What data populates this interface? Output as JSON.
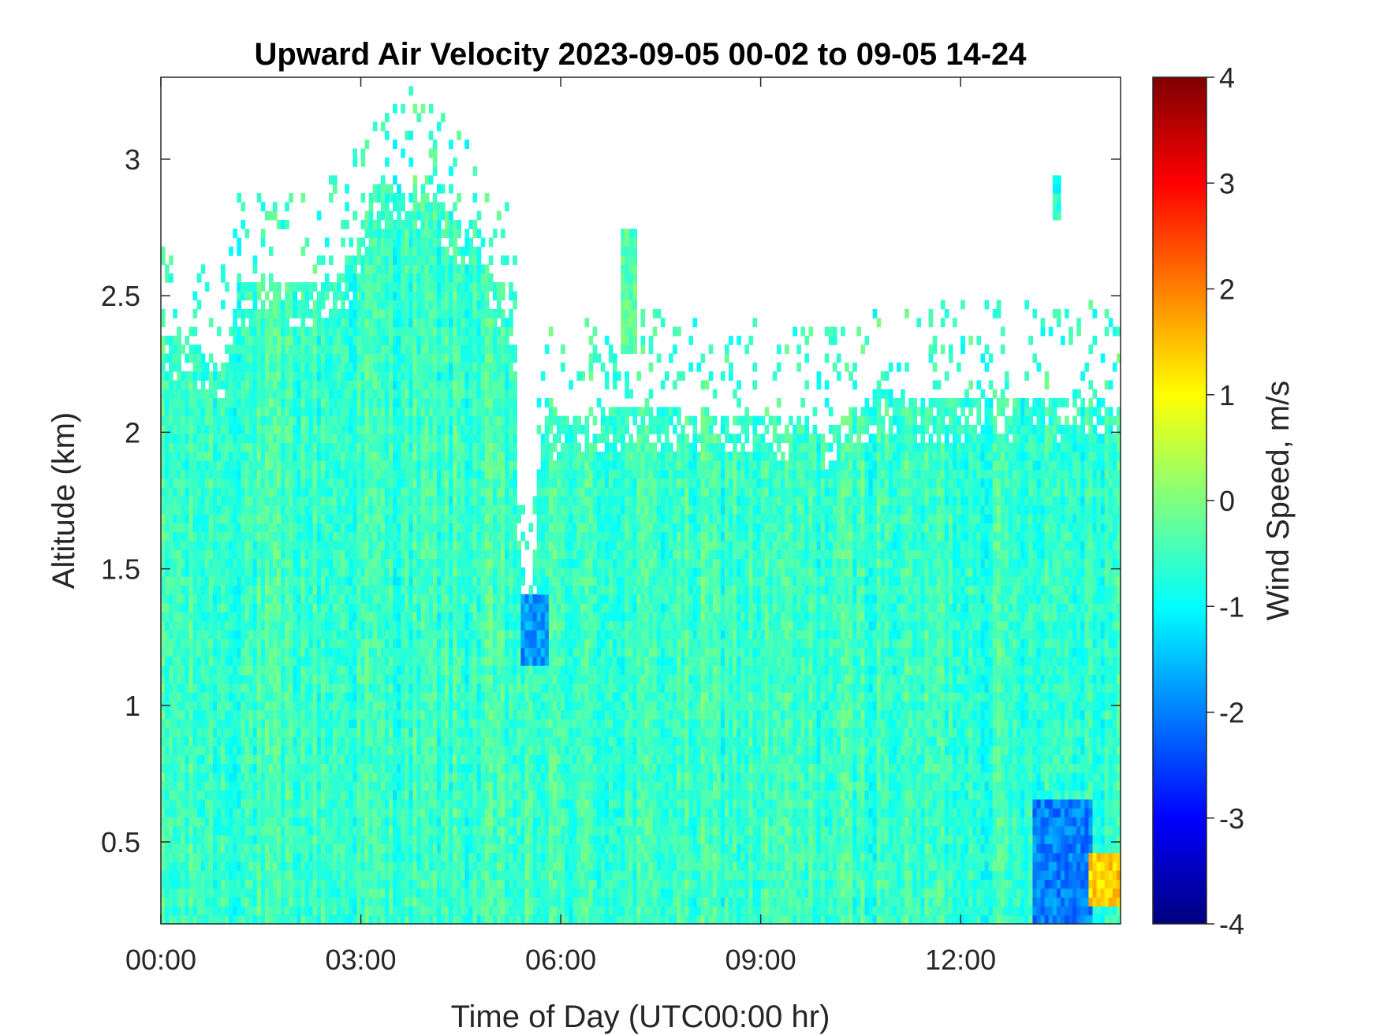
{
  "chart_data": {
    "type": "heatmap",
    "title": "Upward Air Velocity 2023-09-05 00-02 to 09-05 14-24",
    "xlabel": "Time of Day (UTC00:00 hr)",
    "ylabel": "Altitude (km)",
    "x_unit": "hours",
    "xlim": [
      0,
      14.4
    ],
    "ylim": [
      0.2,
      3.3
    ],
    "x_ticks": [
      {
        "value": 0,
        "label": "00:00"
      },
      {
        "value": 3,
        "label": "03:00"
      },
      {
        "value": 6,
        "label": "06:00"
      },
      {
        "value": 9,
        "label": "09:00"
      },
      {
        "value": 12,
        "label": "12:00"
      }
    ],
    "y_ticks": [
      {
        "value": 0.5,
        "label": "0.5"
      },
      {
        "value": 1,
        "label": "1"
      },
      {
        "value": 1.5,
        "label": "1.5"
      },
      {
        "value": 2,
        "label": "2"
      },
      {
        "value": 2.5,
        "label": "2.5"
      },
      {
        "value": 3,
        "label": "3"
      }
    ],
    "colorbar": {
      "label": "Wind Speed, m/s",
      "colormap": "jet",
      "clim": [
        -4,
        4
      ],
      "ticks": [
        {
          "value": -4,
          "label": "-4"
        },
        {
          "value": -3,
          "label": "-3"
        },
        {
          "value": -2,
          "label": "-2"
        },
        {
          "value": -1,
          "label": "-1"
        },
        {
          "value": 0,
          "label": "0"
        },
        {
          "value": 1,
          "label": "1"
        },
        {
          "value": 2,
          "label": "2"
        },
        {
          "value": 3,
          "label": "3"
        },
        {
          "value": 4,
          "label": "4"
        }
      ]
    },
    "grid": false,
    "time_bins": 240,
    "altitude_bins": 95,
    "typical_velocity_range": [
      -1.2,
      0.2
    ],
    "data_top_profile": [
      [
        0.0,
        2.37
      ],
      [
        0.3,
        2.35
      ],
      [
        0.6,
        2.3
      ],
      [
        0.9,
        2.22
      ],
      [
        1.2,
        2.55
      ],
      [
        1.8,
        2.55
      ],
      [
        2.3,
        2.55
      ],
      [
        2.8,
        2.6
      ],
      [
        3.2,
        2.9
      ],
      [
        3.7,
        2.93
      ],
      [
        4.2,
        2.85
      ],
      [
        4.7,
        2.7
      ],
      [
        5.0,
        2.55
      ],
      [
        5.3,
        2.45
      ],
      [
        5.4,
        1.45
      ],
      [
        5.5,
        1.35
      ],
      [
        5.6,
        1.5
      ],
      [
        5.7,
        2.05
      ],
      [
        6.5,
        2.07
      ],
      [
        7.0,
        2.1
      ],
      [
        8.0,
        2.07
      ],
      [
        9.0,
        2.07
      ],
      [
        10.0,
        2.02
      ],
      [
        10.8,
        2.15
      ],
      [
        11.5,
        2.12
      ],
      [
        12.3,
        2.12
      ],
      [
        13.0,
        2.12
      ],
      [
        14.0,
        2.12
      ],
      [
        14.4,
        2.1
      ]
    ],
    "notable_regions": [
      {
        "x_range": [
          13.1,
          14.0
        ],
        "altitude_range": [
          0.2,
          0.65
        ],
        "velocity": -2.0
      },
      {
        "x_range": [
          13.9,
          14.4
        ],
        "altitude_range": [
          0.25,
          0.45
        ],
        "velocity": 1.4
      },
      {
        "x_range": [
          5.4,
          5.8
        ],
        "altitude_range": [
          1.15,
          1.4
        ],
        "velocity": -1.8
      },
      {
        "x_range": [
          6.9,
          7.15
        ],
        "altitude_range": [
          2.3,
          2.75
        ],
        "velocity": -0.3
      },
      {
        "x_range": [
          13.4,
          13.5
        ],
        "altitude_range": [
          2.78,
          2.93
        ],
        "velocity": -0.8
      }
    ]
  }
}
